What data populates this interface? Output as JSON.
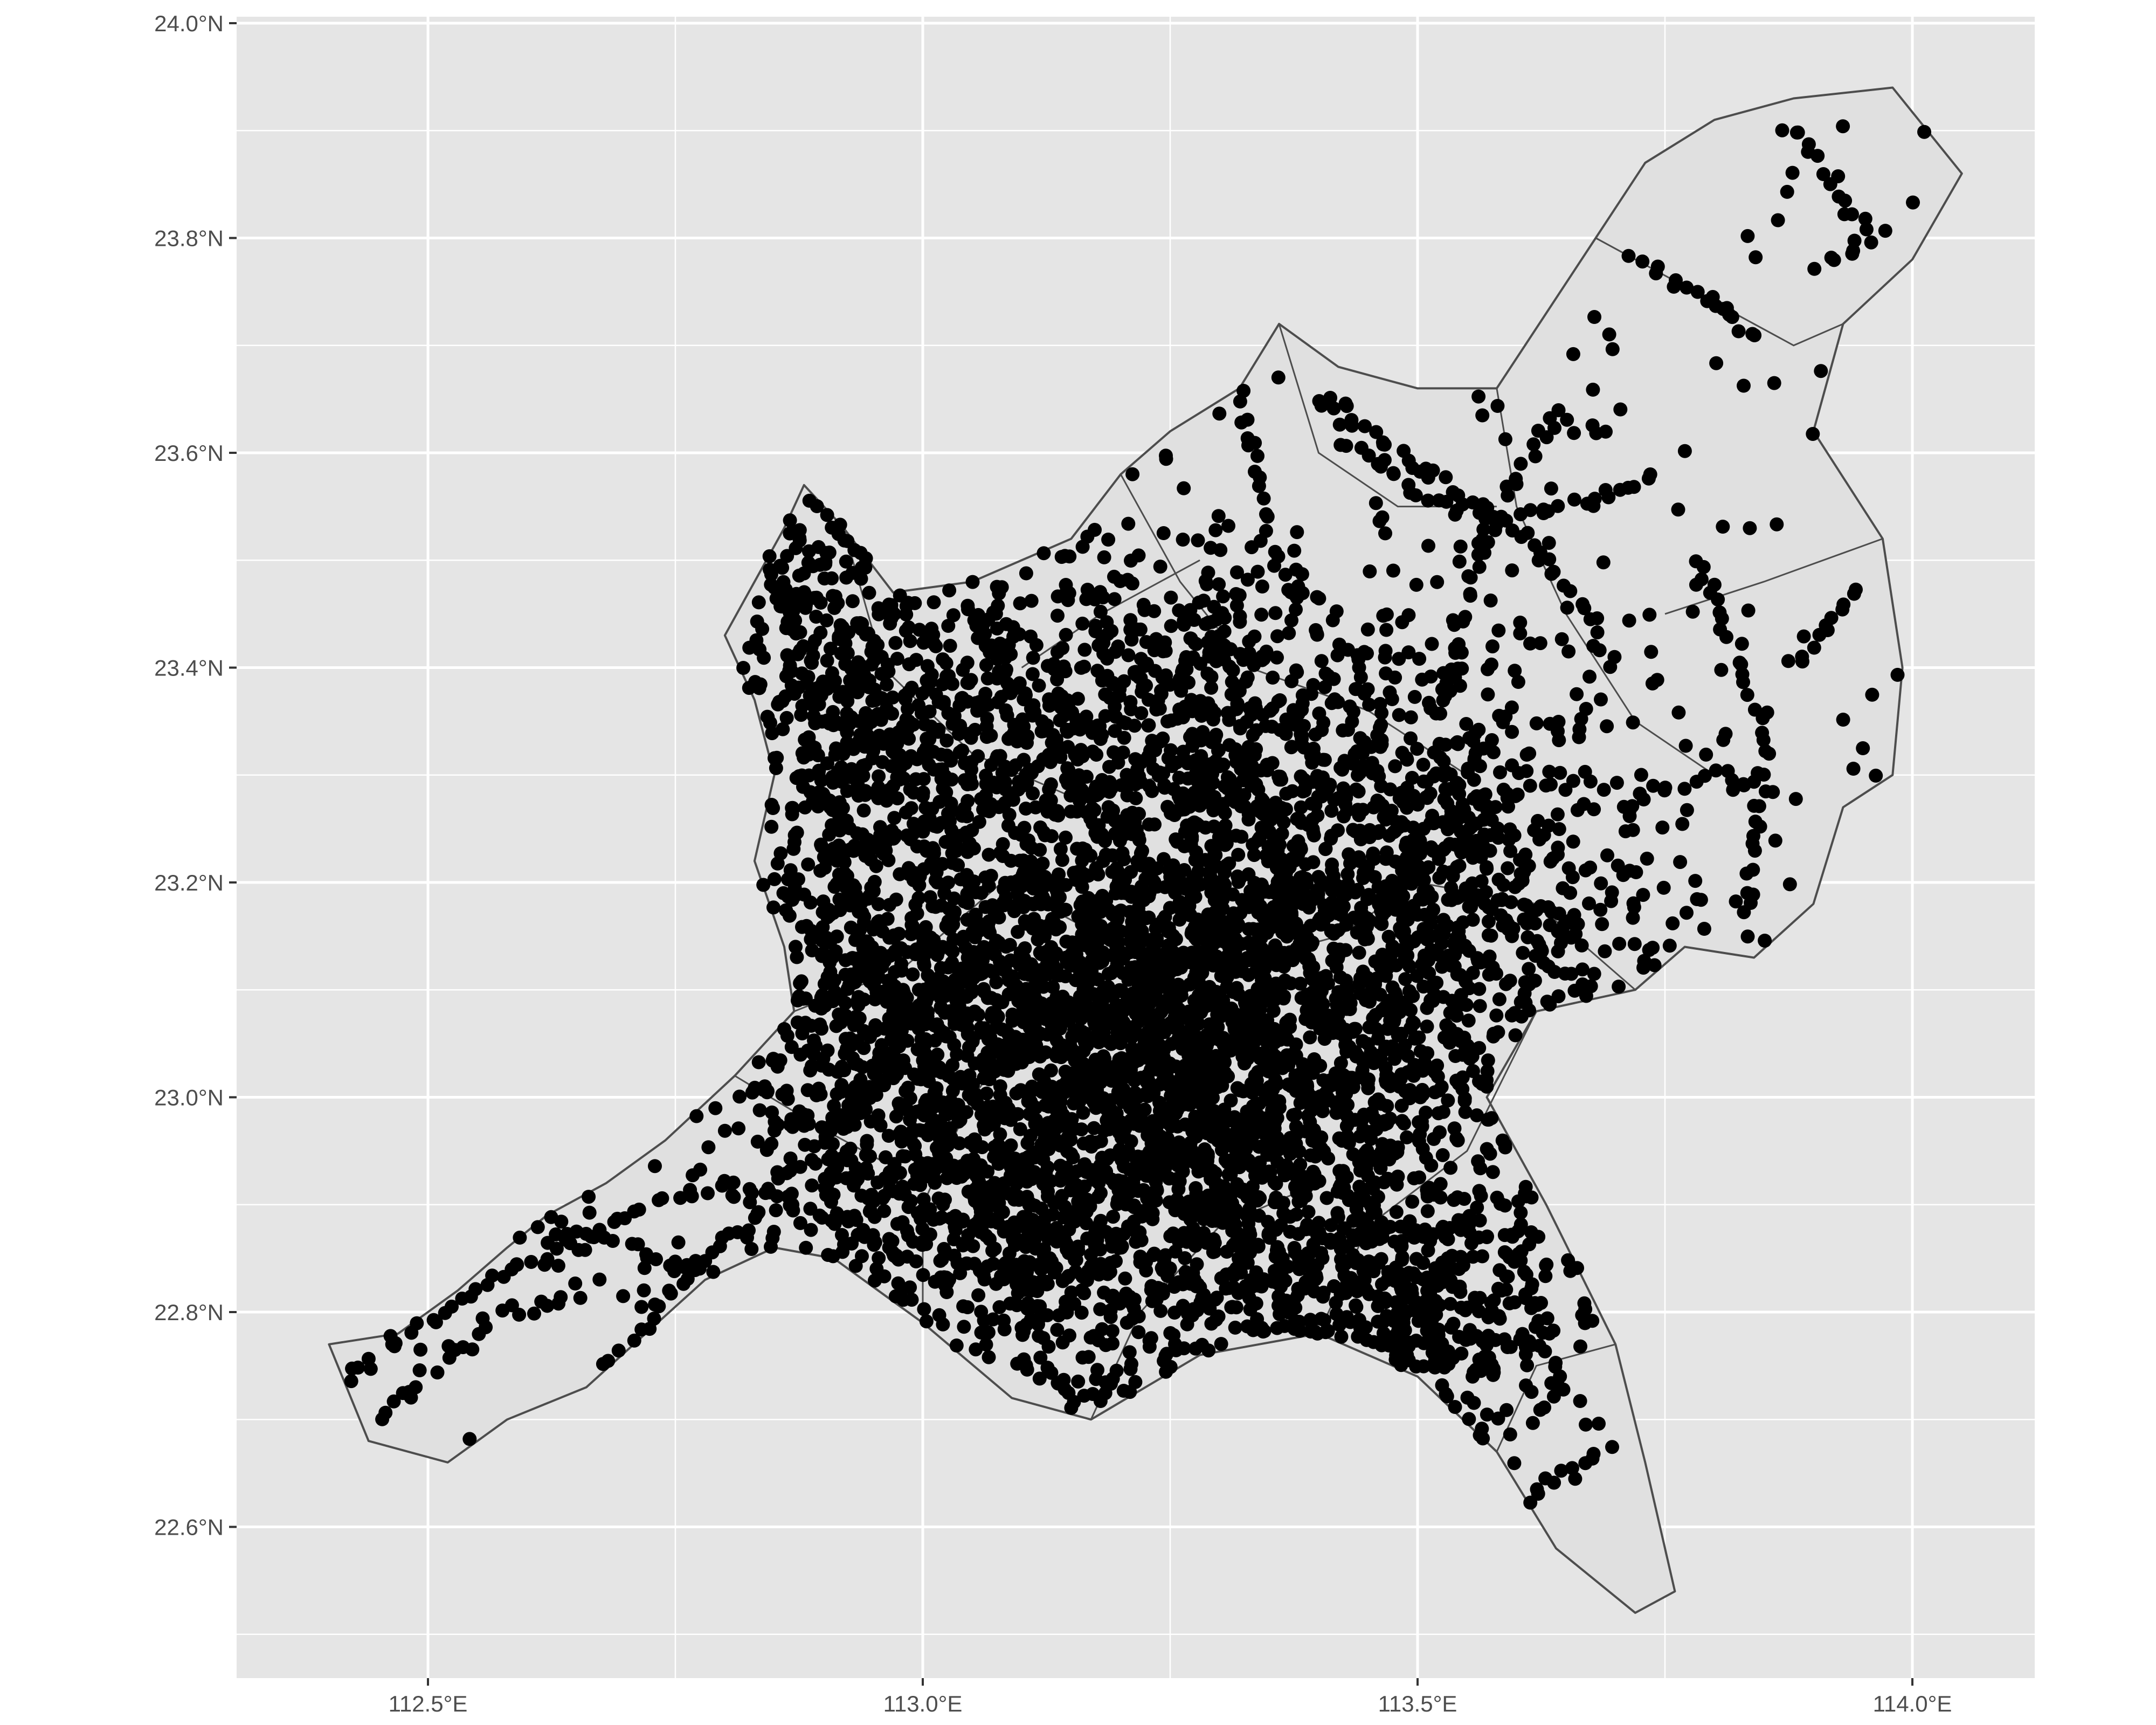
{
  "map": {
    "x_axis": {
      "ticks": [
        {
          "value": 112.5,
          "label": "112.5°E"
        },
        {
          "value": 113.0,
          "label": "113.0°E"
        },
        {
          "value": 113.5,
          "label": "113.5°E"
        },
        {
          "value": 114.0,
          "label": "114.0°E"
        }
      ],
      "range": [
        112.3,
        114.13
      ]
    },
    "y_axis": {
      "ticks": [
        {
          "value": 22.6,
          "label": "22.6°N"
        },
        {
          "value": 22.8,
          "label": "22.8°N"
        },
        {
          "value": 23.0,
          "label": "23.0°N"
        },
        {
          "value": 23.2,
          "label": "23.2°N"
        },
        {
          "value": 23.4,
          "label": "23.4°N"
        },
        {
          "value": 23.6,
          "label": "23.6°N"
        },
        {
          "value": 23.8,
          "label": "23.8°N"
        },
        {
          "value": 24.0,
          "label": "24.0°N"
        }
      ],
      "range": [
        22.46,
        24.0
      ]
    },
    "grid": true,
    "colors": {
      "panel_background": "#e5e5e5",
      "grid_line": "#ffffff",
      "region_fill": "#e0e0e0",
      "region_border": "#4d4d4d",
      "points": "#000000",
      "tick_text": "#4d4d4d",
      "tick_mark": "#333333"
    },
    "outline": [
      [
        112.44,
        22.68
      ],
      [
        112.4,
        22.77
      ],
      [
        112.47,
        22.78
      ],
      [
        112.53,
        22.82
      ],
      [
        112.58,
        22.86
      ],
      [
        112.62,
        22.89
      ],
      [
        112.68,
        22.92
      ],
      [
        112.74,
        22.96
      ],
      [
        112.81,
        23.02
      ],
      [
        112.87,
        23.08
      ],
      [
        112.86,
        23.14
      ],
      [
        112.83,
        23.22
      ],
      [
        112.85,
        23.3
      ],
      [
        112.83,
        23.37
      ],
      [
        112.8,
        23.43
      ],
      [
        112.83,
        23.48
      ],
      [
        112.86,
        23.53
      ],
      [
        112.88,
        23.57
      ],
      [
        112.92,
        23.53
      ],
      [
        112.97,
        23.47
      ],
      [
        113.05,
        23.48
      ],
      [
        113.15,
        23.52
      ],
      [
        113.2,
        23.58
      ],
      [
        113.25,
        23.62
      ],
      [
        113.32,
        23.66
      ],
      [
        113.36,
        23.72
      ],
      [
        113.42,
        23.68
      ],
      [
        113.5,
        23.66
      ],
      [
        113.58,
        23.66
      ],
      [
        113.63,
        23.73
      ],
      [
        113.68,
        23.8
      ],
      [
        113.73,
        23.87
      ],
      [
        113.8,
        23.91
      ],
      [
        113.88,
        23.93
      ],
      [
        113.98,
        23.94
      ],
      [
        114.05,
        23.86
      ],
      [
        114.0,
        23.78
      ],
      [
        113.93,
        23.72
      ],
      [
        113.9,
        23.62
      ],
      [
        113.97,
        23.52
      ],
      [
        113.99,
        23.4
      ],
      [
        113.98,
        23.3
      ],
      [
        113.93,
        23.27
      ],
      [
        113.9,
        23.18
      ],
      [
        113.84,
        23.13
      ],
      [
        113.77,
        23.14
      ],
      [
        113.72,
        23.1
      ],
      [
        113.62,
        23.08
      ],
      [
        113.57,
        23.0
      ],
      [
        113.63,
        22.9
      ],
      [
        113.7,
        22.77
      ],
      [
        113.73,
        22.66
      ],
      [
        113.76,
        22.54
      ],
      [
        113.72,
        22.52
      ],
      [
        113.64,
        22.58
      ],
      [
        113.58,
        22.67
      ],
      [
        113.5,
        22.74
      ],
      [
        113.4,
        22.78
      ],
      [
        113.28,
        22.76
      ],
      [
        113.17,
        22.7
      ],
      [
        113.09,
        22.72
      ],
      [
        113.0,
        22.79
      ],
      [
        112.91,
        22.85
      ],
      [
        112.85,
        22.86
      ],
      [
        112.78,
        22.83
      ],
      [
        112.72,
        22.78
      ],
      [
        112.66,
        22.73
      ],
      [
        112.58,
        22.7
      ],
      [
        112.52,
        22.66
      ],
      [
        112.44,
        22.68
      ]
    ],
    "borders": [
      [
        [
          112.81,
          23.02
        ],
        [
          112.9,
          22.97
        ],
        [
          112.96,
          22.94
        ]
      ],
      [
        [
          113.0,
          22.79
        ],
        [
          113.0,
          22.9
        ],
        [
          113.05,
          23.0
        ],
        [
          113.1,
          23.06
        ]
      ],
      [
        [
          112.92,
          23.53
        ],
        [
          112.96,
          23.4
        ],
        [
          113.05,
          23.32
        ],
        [
          113.15,
          23.28
        ],
        [
          113.25,
          23.3
        ]
      ],
      [
        [
          113.2,
          23.58
        ],
        [
          113.26,
          23.48
        ],
        [
          113.33,
          23.4
        ],
        [
          113.45,
          23.36
        ],
        [
          113.55,
          23.3
        ]
      ],
      [
        [
          113.58,
          23.66
        ],
        [
          113.6,
          23.55
        ],
        [
          113.65,
          23.45
        ],
        [
          113.72,
          23.35
        ],
        [
          113.8,
          23.3
        ]
      ],
      [
        [
          113.68,
          23.8
        ],
        [
          113.78,
          23.75
        ],
        [
          113.88,
          23.7
        ],
        [
          113.93,
          23.72
        ]
      ],
      [
        [
          113.5,
          23.2
        ],
        [
          113.62,
          23.18
        ],
        [
          113.72,
          23.1
        ]
      ],
      [
        [
          113.4,
          22.78
        ],
        [
          113.45,
          22.88
        ],
        [
          113.55,
          22.95
        ],
        [
          113.62,
          23.08
        ]
      ],
      [
        [
          113.17,
          22.7
        ],
        [
          113.22,
          22.8
        ],
        [
          113.3,
          22.88
        ],
        [
          113.4,
          22.92
        ]
      ],
      [
        [
          113.58,
          22.67
        ],
        [
          113.62,
          22.75
        ],
        [
          113.7,
          22.77
        ]
      ],
      [
        [
          113.08,
          23.2
        ],
        [
          113.18,
          23.15
        ],
        [
          113.3,
          23.12
        ],
        [
          113.42,
          23.15
        ],
        [
          113.5,
          23.2
        ]
      ],
      [
        [
          112.87,
          23.08
        ],
        [
          112.98,
          23.12
        ],
        [
          113.08,
          23.2
        ]
      ],
      [
        [
          113.36,
          23.72
        ],
        [
          113.4,
          23.6
        ],
        [
          113.48,
          23.55
        ],
        [
          113.58,
          23.55
        ]
      ],
      [
        [
          113.1,
          23.4
        ],
        [
          113.18,
          23.45
        ],
        [
          113.28,
          23.5
        ]
      ],
      [
        [
          113.75,
          23.45
        ],
        [
          113.85,
          23.48
        ],
        [
          113.97,
          23.52
        ]
      ]
    ],
    "clusters": [
      {
        "cx": 113.25,
        "cy": 23.1,
        "sx": 0.14,
        "sy": 0.13,
        "n": 1500
      },
      {
        "cx": 113.05,
        "cy": 23.0,
        "sx": 0.12,
        "sy": 0.12,
        "n": 900
      },
      {
        "cx": 113.4,
        "cy": 23.05,
        "sx": 0.14,
        "sy": 0.14,
        "n": 900
      },
      {
        "cx": 112.95,
        "cy": 23.15,
        "sx": 0.09,
        "sy": 0.15,
        "n": 500
      },
      {
        "cx": 113.25,
        "cy": 22.85,
        "sx": 0.18,
        "sy": 0.07,
        "n": 600
      },
      {
        "cx": 113.2,
        "cy": 23.38,
        "sx": 0.16,
        "sy": 0.07,
        "n": 600
      },
      {
        "cx": 113.55,
        "cy": 23.2,
        "sx": 0.1,
        "sy": 0.1,
        "n": 500
      },
      {
        "cx": 112.92,
        "cy": 23.42,
        "sx": 0.06,
        "sy": 0.09,
        "n": 250
      },
      {
        "cx": 113.5,
        "cy": 22.78,
        "sx": 0.07,
        "sy": 0.06,
        "n": 300
      }
    ],
    "tracks": [
      [
        [
          112.41,
          22.73
        ],
        [
          112.48,
          22.78
        ],
        [
          112.55,
          22.82
        ],
        [
          112.63,
          22.86
        ],
        [
          112.72,
          22.9
        ],
        [
          112.8,
          22.92
        ],
        [
          112.88,
          22.9
        ]
      ],
      [
        [
          112.45,
          22.7
        ],
        [
          112.52,
          22.76
        ],
        [
          112.58,
          22.8
        ],
        [
          112.66,
          22.82
        ]
      ],
      [
        [
          112.68,
          22.75
        ],
        [
          112.75,
          22.82
        ],
        [
          112.82,
          22.88
        ],
        [
          112.86,
          22.93
        ]
      ],
      [
        [
          112.6,
          22.88
        ],
        [
          112.7,
          22.86
        ],
        [
          112.78,
          22.84
        ]
      ],
      [
        [
          112.82,
          23.55
        ],
        [
          112.86,
          23.48
        ],
        [
          112.88,
          23.4
        ],
        [
          112.9,
          23.3
        ],
        [
          112.92,
          23.2
        ],
        [
          112.96,
          23.1
        ]
      ],
      [
        [
          113.3,
          23.72
        ],
        [
          113.33,
          23.62
        ],
        [
          113.35,
          23.52
        ],
        [
          113.38,
          23.45
        ]
      ],
      [
        [
          113.4,
          23.65
        ],
        [
          113.48,
          23.6
        ],
        [
          113.58,
          23.54
        ],
        [
          113.65,
          23.48
        ],
        [
          113.7,
          23.4
        ]
      ],
      [
        [
          113.58,
          23.55
        ],
        [
          113.63,
          23.63
        ],
        [
          113.7,
          23.62
        ]
      ],
      [
        [
          113.42,
          23.62
        ],
        [
          113.5,
          23.56
        ],
        [
          113.58,
          23.54
        ],
        [
          113.66,
          23.55
        ],
        [
          113.75,
          23.58
        ]
      ],
      [
        [
          113.57,
          23.55
        ],
        [
          113.55,
          23.45
        ],
        [
          113.52,
          23.35
        ]
      ],
      [
        [
          113.72,
          23.78
        ],
        [
          113.8,
          23.74
        ],
        [
          113.85,
          23.7
        ]
      ],
      [
        [
          113.88,
          23.9
        ],
        [
          113.92,
          23.85
        ],
        [
          113.96,
          23.8
        ],
        [
          113.9,
          23.77
        ]
      ],
      [
        [
          113.78,
          23.5
        ],
        [
          113.82,
          23.42
        ],
        [
          113.85,
          23.35
        ],
        [
          113.84,
          23.25
        ],
        [
          113.83,
          23.15
        ]
      ],
      [
        [
          113.72,
          23.28
        ],
        [
          113.8,
          23.3
        ],
        [
          113.87,
          23.28
        ]
      ],
      [
        [
          113.88,
          23.4
        ],
        [
          113.92,
          23.45
        ],
        [
          113.95,
          23.48
        ]
      ],
      [
        [
          113.6,
          23.1
        ],
        [
          113.65,
          23.0
        ],
        [
          113.6,
          22.9
        ],
        [
          113.62,
          22.8
        ],
        [
          113.65,
          22.72
        ]
      ],
      [
        [
          113.55,
          22.7
        ],
        [
          113.6,
          22.62
        ],
        [
          113.65,
          22.65
        ],
        [
          113.7,
          22.68
        ]
      ],
      [
        [
          113.1,
          22.75
        ],
        [
          113.18,
          22.72
        ],
        [
          113.25,
          22.74
        ]
      ],
      [
        [
          112.9,
          23.22
        ],
        [
          113.0,
          23.25
        ],
        [
          113.1,
          23.28
        ],
        [
          113.2,
          23.3
        ],
        [
          113.3,
          23.28
        ],
        [
          113.4,
          23.25
        ]
      ],
      [
        [
          113.05,
          23.45
        ],
        [
          113.1,
          23.38
        ],
        [
          113.15,
          23.3
        ],
        [
          113.2,
          23.2
        ],
        [
          113.25,
          23.1
        ],
        [
          113.28,
          23.0
        ],
        [
          113.3,
          22.9
        ]
      ],
      [
        [
          113.3,
          23.45
        ],
        [
          113.32,
          23.35
        ],
        [
          113.35,
          23.25
        ],
        [
          113.38,
          23.15
        ],
        [
          113.42,
          23.05
        ]
      ],
      [
        [
          112.88,
          22.98
        ],
        [
          112.95,
          22.92
        ],
        [
          113.05,
          22.88
        ],
        [
          113.15,
          22.85
        ]
      ]
    ]
  }
}
